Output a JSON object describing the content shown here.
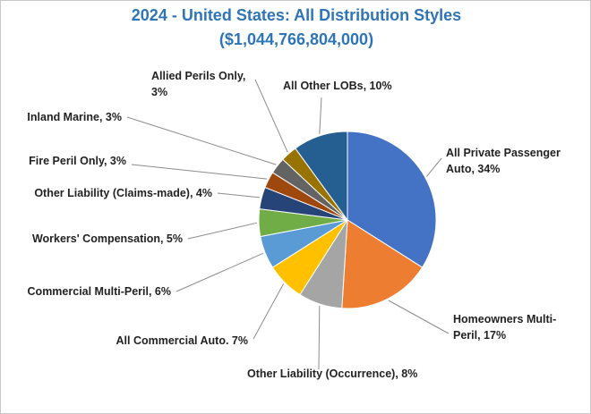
{
  "chart_data": {
    "type": "pie",
    "title": "2024 - United States: All Distribution Styles",
    "subtitle": "($1,044,766,804,000)",
    "slices": [
      {
        "name": "All Private Passenger Auto",
        "value": 34,
        "label": "All Private Passenger Auto, 34%",
        "color": "#4472c4"
      },
      {
        "name": "Homeowners Multi-Peril",
        "value": 17,
        "label": "Homeowners Multi-Peril, 17%",
        "color": "#ed7d31"
      },
      {
        "name": "Other Liability (Occurrence)",
        "value": 8,
        "label": "Other Liability (Occurrence), 8%",
        "color": "#a5a5a5"
      },
      {
        "name": "All Commercial Auto",
        "value": 7,
        "label": "All Commercial Auto. 7%",
        "color": "#ffc000"
      },
      {
        "name": "Commercial Multi-Peril",
        "value": 6,
        "label": "Commercial Multi-Peril, 6%",
        "color": "#5b9bd5"
      },
      {
        "name": "Workers' Compensation",
        "value": 5,
        "label": "Workers' Compensation, 5%",
        "color": "#70ad47"
      },
      {
        "name": "Other Liability (Claims-made)",
        "value": 4,
        "label": "Other Liability (Claims-made), 4%",
        "color": "#264478"
      },
      {
        "name": "Fire Peril Only",
        "value": 3,
        "label": "Fire Peril Only, 3%",
        "color": "#9e480e"
      },
      {
        "name": "Inland Marine",
        "value": 3,
        "label": "Inland Marine, 3%",
        "color": "#636363"
      },
      {
        "name": "Allied Perils Only",
        "value": 3,
        "label": "Allied Perils Only, 3%",
        "color": "#997300"
      },
      {
        "name": "All Other LOBs",
        "value": 10,
        "label": "All Other LOBs, 10%",
        "color": "#255e91"
      }
    ]
  }
}
